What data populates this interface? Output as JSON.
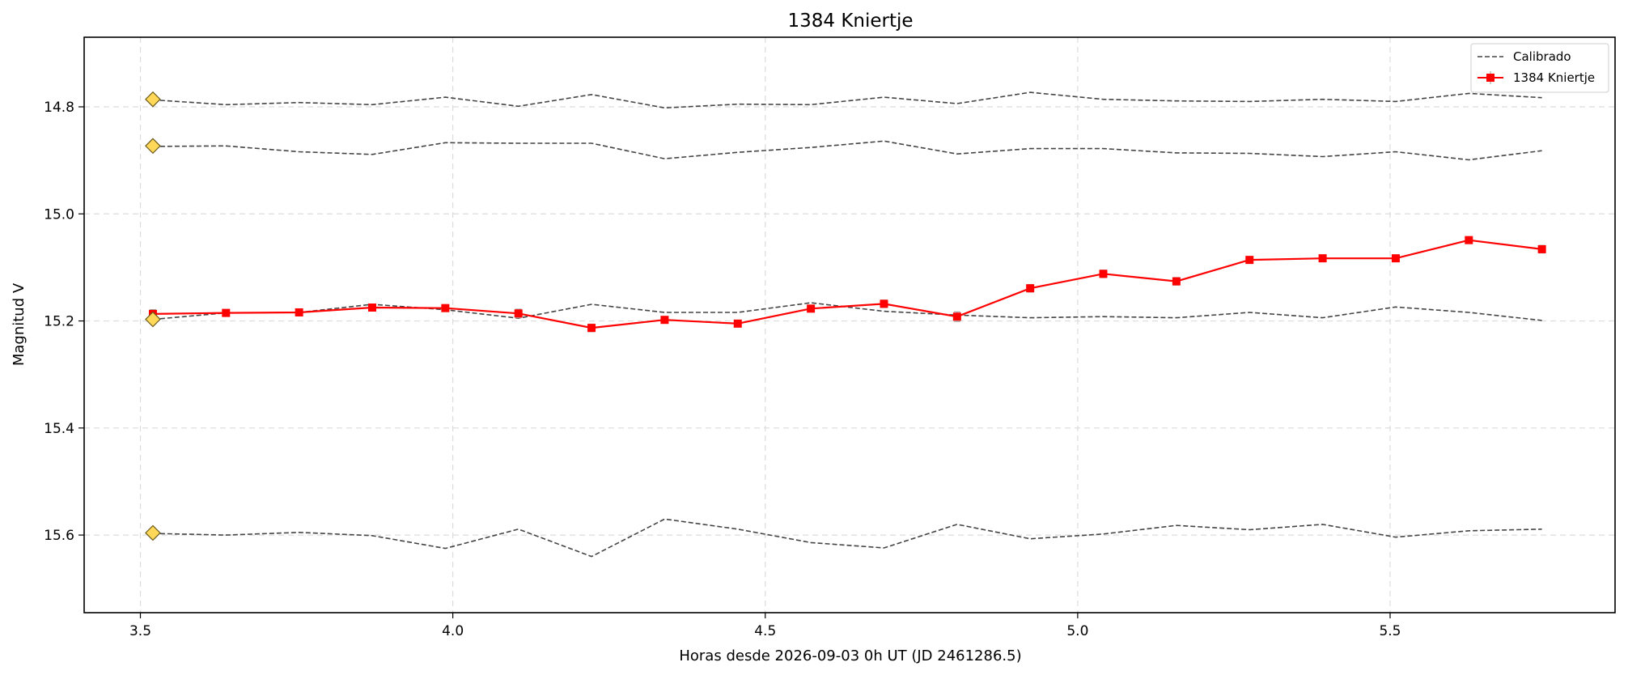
{
  "chart_data": {
    "type": "line",
    "title": "1384 Kniertje",
    "xlabel": "Horas desde 2026-09-03 0h UT (JD 2461286.5)",
    "ylabel": "Magnitud V",
    "xlim": [
      3.41,
      5.86
    ],
    "ylim": [
      15.745,
      14.67
    ],
    "y_inverted": true,
    "xticks": [
      3.5,
      4.0,
      4.5,
      5.0,
      5.5
    ],
    "xtick_labels": [
      "3.5",
      "4.0",
      "4.5",
      "5.0",
      "5.5"
    ],
    "yticks": [
      14.8,
      15.0,
      15.2,
      15.4,
      15.6
    ],
    "ytick_labels": [
      "14.8",
      "15.0",
      "15.2",
      "15.4",
      "15.6"
    ],
    "grid": true,
    "legend_position": "top-right",
    "x": [
      3.52,
      3.637,
      3.754,
      3.871,
      3.988,
      4.105,
      4.222,
      4.339,
      4.456,
      4.573,
      4.69,
      4.807,
      4.924,
      5.041,
      5.158,
      5.275,
      5.392,
      5.509,
      5.626,
      5.743
    ],
    "series": [
      {
        "name": "Calibrado",
        "group": "comparison",
        "style": "dashed",
        "color": "#444444",
        "values": [
          14.787,
          14.796,
          14.792,
          14.796,
          14.782,
          14.799,
          14.777,
          14.802,
          14.795,
          14.796,
          14.782,
          14.794,
          14.773,
          14.786,
          14.789,
          14.79,
          14.786,
          14.79,
          14.775,
          14.783
        ]
      },
      {
        "group": "comparison",
        "style": "dashed",
        "color": "#444444",
        "values": [
          14.874,
          14.873,
          14.884,
          14.889,
          14.867,
          14.868,
          14.868,
          14.897,
          14.885,
          14.876,
          14.864,
          14.888,
          14.878,
          14.878,
          14.886,
          14.887,
          14.893,
          14.884,
          14.899,
          14.882
        ]
      },
      {
        "group": "comparison",
        "style": "dashed",
        "color": "#444444",
        "values": [
          15.197,
          15.185,
          15.184,
          15.169,
          15.179,
          15.195,
          15.169,
          15.184,
          15.184,
          15.166,
          15.182,
          15.189,
          15.194,
          15.192,
          15.194,
          15.184,
          15.194,
          15.174,
          15.184,
          15.199
        ]
      },
      {
        "group": "comparison",
        "style": "dashed",
        "color": "#444444",
        "values": [
          15.597,
          15.6,
          15.595,
          15.601,
          15.625,
          15.589,
          15.64,
          15.57,
          15.589,
          15.614,
          15.624,
          15.58,
          15.607,
          15.598,
          15.582,
          15.59,
          15.58,
          15.604,
          15.592,
          15.589
        ]
      },
      {
        "name": "1384 Kniertje",
        "group": "target",
        "style": "solid",
        "color": "#ff0000",
        "marker": "square",
        "values": [
          15.187,
          15.185,
          15.184,
          15.175,
          15.176,
          15.186,
          15.213,
          15.198,
          15.205,
          15.177,
          15.168,
          15.192,
          15.139,
          15.112,
          15.126,
          15.086,
          15.083,
          15.083,
          15.049,
          15.066
        ],
        "errors": [
          0.008,
          0.006,
          0.006,
          0.006,
          0.006,
          0.008,
          0.007,
          0.006,
          0.006,
          0.006,
          0.007,
          0.009,
          0.007,
          0.007,
          0.007,
          0.006,
          0.006,
          0.006,
          0.006,
          0.007
        ]
      }
    ],
    "reference_markers": {
      "shape": "diamond",
      "color": "#ffd85a",
      "x": 3.52,
      "values": [
        14.786,
        14.873,
        15.197,
        15.596
      ]
    }
  }
}
